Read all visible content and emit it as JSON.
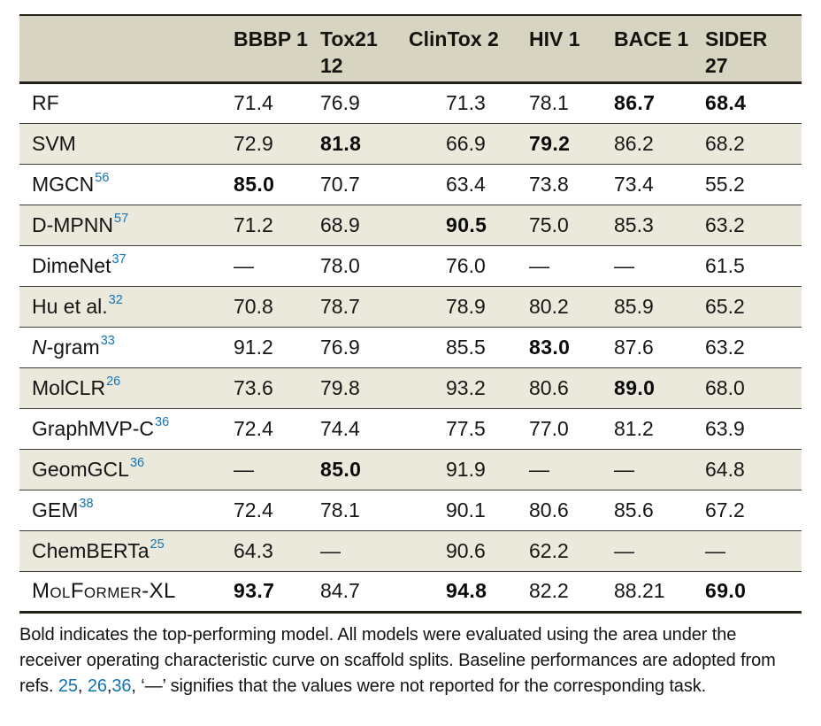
{
  "table": {
    "header": {
      "corner": "",
      "columns": [
        "BBBP 1",
        "Tox21\n12",
        "ClinTox 2",
        "HIV 1",
        "BACE 1",
        "SIDER\n27"
      ]
    },
    "rows": [
      {
        "model": "RF",
        "ref": "",
        "style": "plain",
        "values": [
          {
            "v": "71.4",
            "b": false
          },
          {
            "v": "76.9",
            "b": false
          },
          {
            "v": "71.3",
            "b": false
          },
          {
            "v": "78.1",
            "b": false
          },
          {
            "v": "86.7",
            "b": true
          },
          {
            "v": "68.4",
            "b": true
          }
        ]
      },
      {
        "model": "SVM",
        "ref": "",
        "style": "plain",
        "values": [
          {
            "v": "72.9",
            "b": false
          },
          {
            "v": "81.8",
            "b": true
          },
          {
            "v": "66.9",
            "b": false
          },
          {
            "v": "79.2",
            "b": true
          },
          {
            "v": "86.2",
            "b": false
          },
          {
            "v": "68.2",
            "b": false
          }
        ]
      },
      {
        "model": "MGCN",
        "ref": "56",
        "style": "plain",
        "values": [
          {
            "v": "85.0",
            "b": true
          },
          {
            "v": "70.7",
            "b": false
          },
          {
            "v": "63.4",
            "b": false
          },
          {
            "v": "73.8",
            "b": false
          },
          {
            "v": "73.4",
            "b": false
          },
          {
            "v": "55.2",
            "b": false
          }
        ]
      },
      {
        "model": "D-MPNN",
        "ref": "57",
        "style": "plain",
        "values": [
          {
            "v": "71.2",
            "b": false
          },
          {
            "v": "68.9",
            "b": false
          },
          {
            "v": "90.5",
            "b": true
          },
          {
            "v": "75.0",
            "b": false
          },
          {
            "v": "85.3",
            "b": false
          },
          {
            "v": "63.2",
            "b": false
          }
        ]
      },
      {
        "model": "DimeNet",
        "ref": "37",
        "style": "plain",
        "values": [
          {
            "v": "—",
            "b": false
          },
          {
            "v": "78.0",
            "b": false
          },
          {
            "v": "76.0",
            "b": false
          },
          {
            "v": "—",
            "b": false
          },
          {
            "v": "—",
            "b": false
          },
          {
            "v": "61.5",
            "b": false
          }
        ]
      },
      {
        "model": "Hu et al.",
        "ref": "32",
        "style": "plain",
        "values": [
          {
            "v": "70.8",
            "b": false
          },
          {
            "v": "78.7",
            "b": false
          },
          {
            "v": "78.9",
            "b": false
          },
          {
            "v": "80.2",
            "b": false
          },
          {
            "v": "85.9",
            "b": false
          },
          {
            "v": "65.2",
            "b": false
          }
        ]
      },
      {
        "model": "N-gram",
        "ref": "33",
        "style": "italic-first",
        "values": [
          {
            "v": "91.2",
            "b": false
          },
          {
            "v": "76.9",
            "b": false
          },
          {
            "v": "85.5",
            "b": false
          },
          {
            "v": "83.0",
            "b": true
          },
          {
            "v": "87.6",
            "b": false
          },
          {
            "v": "63.2",
            "b": false
          }
        ]
      },
      {
        "model": "MolCLR",
        "ref": "26",
        "style": "plain",
        "values": [
          {
            "v": "73.6",
            "b": false
          },
          {
            "v": "79.8",
            "b": false
          },
          {
            "v": "93.2",
            "b": false
          },
          {
            "v": "80.6",
            "b": false
          },
          {
            "v": "89.0",
            "b": true
          },
          {
            "v": "68.0",
            "b": false
          }
        ]
      },
      {
        "model": "GraphMVP-C",
        "ref": "36",
        "style": "plain",
        "values": [
          {
            "v": "72.4",
            "b": false
          },
          {
            "v": "74.4",
            "b": false
          },
          {
            "v": "77.5",
            "b": false
          },
          {
            "v": "77.0",
            "b": false
          },
          {
            "v": "81.2",
            "b": false
          },
          {
            "v": "63.9",
            "b": false
          }
        ]
      },
      {
        "model": "GeomGCL",
        "ref": "36",
        "style": "plain",
        "values": [
          {
            "v": "—",
            "b": false
          },
          {
            "v": "85.0",
            "b": true
          },
          {
            "v": "91.9",
            "b": false
          },
          {
            "v": "—",
            "b": false
          },
          {
            "v": "—",
            "b": false
          },
          {
            "v": "64.8",
            "b": false
          }
        ]
      },
      {
        "model": "GEM",
        "ref": "38",
        "style": "plain",
        "values": [
          {
            "v": "72.4",
            "b": false
          },
          {
            "v": "78.1",
            "b": false
          },
          {
            "v": "90.1",
            "b": false
          },
          {
            "v": "80.6",
            "b": false
          },
          {
            "v": "85.6",
            "b": false
          },
          {
            "v": "67.2",
            "b": false
          }
        ]
      },
      {
        "model": "ChemBERTa",
        "ref": "25",
        "style": "plain",
        "values": [
          {
            "v": "64.3",
            "b": false
          },
          {
            "v": "—",
            "b": false
          },
          {
            "v": "90.6",
            "b": false
          },
          {
            "v": "62.2",
            "b": false
          },
          {
            "v": "—",
            "b": false
          },
          {
            "v": "—",
            "b": false
          }
        ]
      },
      {
        "model": "MolFormer-XL",
        "ref": "",
        "style": "smallcaps",
        "values": [
          {
            "v": "93.7",
            "b": true
          },
          {
            "v": "84.7",
            "b": false
          },
          {
            "v": "94.8",
            "b": true
          },
          {
            "v": "82.2",
            "b": false
          },
          {
            "v": "88.21",
            "b": false
          },
          {
            "v": "69.0",
            "b": true
          }
        ]
      }
    ]
  },
  "footnote": {
    "parts": [
      {
        "text": "Bold indicates the top-performing model. All models were evaluated using the area under the receiver operating characteristic curve on scaffold splits. Baseline performances are adopted from refs. ",
        "link": false
      },
      {
        "text": "25",
        "link": true
      },
      {
        "text": ", ",
        "link": false
      },
      {
        "text": "26",
        "link": true
      },
      {
        "text": ",",
        "link": false
      },
      {
        "text": "36",
        "link": true
      },
      {
        "text": ", ‘—’ signifies that the values were not reported for the corresponding task.",
        "link": false
      }
    ]
  },
  "colors": {
    "accent_blue": "#1274b6",
    "header_bg": "#d8d4c2",
    "row_alt_bg": "#ebe9db",
    "rule_dark": "#232219"
  }
}
